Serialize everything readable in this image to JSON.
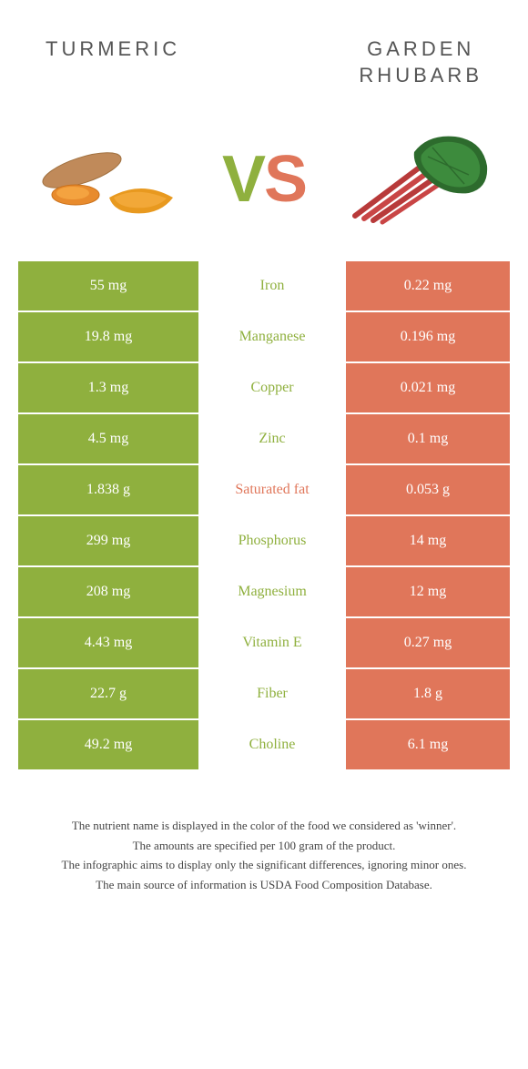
{
  "header": {
    "left_title": "Turmeric",
    "right_title_line1": "Garden",
    "right_title_line2": "rhubarb"
  },
  "hero": {
    "vs_v": "V",
    "vs_s": "S"
  },
  "colors": {
    "left": "#8fb03e",
    "right": "#e0765a",
    "background": "#ffffff"
  },
  "rows": [
    {
      "left": "55 mg",
      "label": "Iron",
      "right": "0.22 mg",
      "winner": "left"
    },
    {
      "left": "19.8 mg",
      "label": "Manganese",
      "right": "0.196 mg",
      "winner": "left"
    },
    {
      "left": "1.3 mg",
      "label": "Copper",
      "right": "0.021 mg",
      "winner": "left"
    },
    {
      "left": "4.5 mg",
      "label": "Zinc",
      "right": "0.1 mg",
      "winner": "left"
    },
    {
      "left": "1.838 g",
      "label": "Saturated fat",
      "right": "0.053 g",
      "winner": "right"
    },
    {
      "left": "299 mg",
      "label": "Phosphorus",
      "right": "14 mg",
      "winner": "left"
    },
    {
      "left": "208 mg",
      "label": "Magnesium",
      "right": "12 mg",
      "winner": "left"
    },
    {
      "left": "4.43 mg",
      "label": "Vitamin E",
      "right": "0.27 mg",
      "winner": "left"
    },
    {
      "left": "22.7 g",
      "label": "Fiber",
      "right": "1.8 g",
      "winner": "left"
    },
    {
      "left": "49.2 mg",
      "label": "Choline",
      "right": "6.1 mg",
      "winner": "left"
    }
  ],
  "footer": {
    "line1": "The nutrient name is displayed in the color of the food we considered as 'winner'.",
    "line2": "The amounts are specified per 100 gram of the product.",
    "line3": "The infographic aims to display only the significant differences, ignoring minor ones.",
    "line4": "The main source of information is USDA Food Composition Database."
  }
}
